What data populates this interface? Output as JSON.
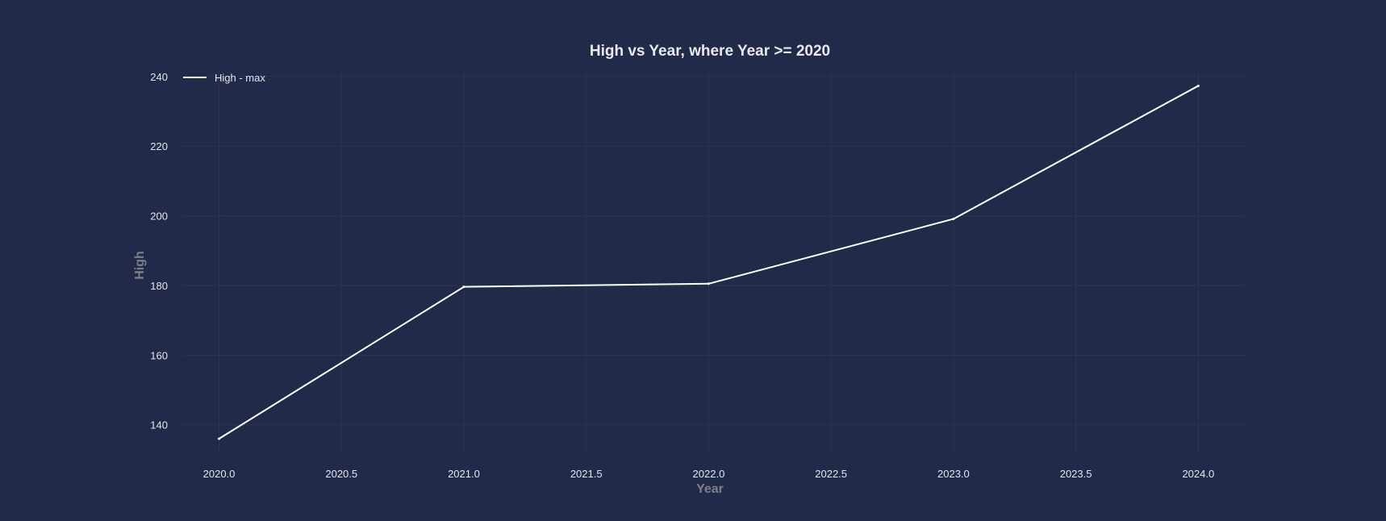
{
  "chart_data": {
    "type": "line",
    "title": "High vs Year, where Year >= 2020",
    "xlabel": "Year",
    "ylabel": "High",
    "x": [
      2020,
      2021,
      2022,
      2023,
      2024
    ],
    "series": [
      {
        "name": "High - max",
        "values": [
          136.0,
          179.6,
          180.5,
          199.1,
          237.3
        ],
        "color": "#ffffff"
      }
    ],
    "xticks": [
      2020.0,
      2020.5,
      2021.0,
      2021.5,
      2022.0,
      2022.5,
      2023.0,
      2023.5,
      2024.0
    ],
    "xtick_labels": [
      "2020.0",
      "2020.5",
      "2021.0",
      "2021.5",
      "2022.0",
      "2022.5",
      "2023.0",
      "2023.5",
      "2024.0"
    ],
    "yticks": [
      140,
      160,
      180,
      200,
      220,
      240
    ],
    "ytick_labels": [
      "140",
      "160",
      "180",
      "200",
      "220",
      "240"
    ],
    "xlim": [
      2019.85,
      2024.19
    ],
    "ylim": [
      132.3,
      241.8
    ],
    "grid": true,
    "legend_position": "top-left",
    "background_color": "#212a48",
    "grid_color": "#2b3453"
  }
}
